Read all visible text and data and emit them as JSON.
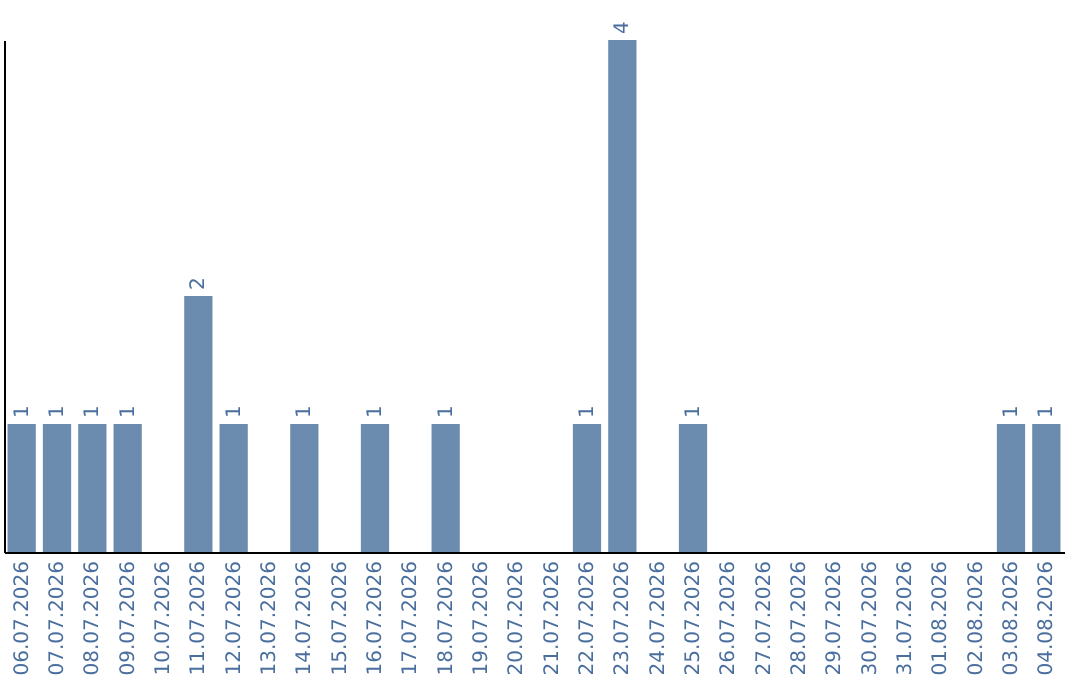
{
  "chart_data": {
    "type": "bar",
    "categories": [
      "06.07.2026",
      "07.07.2026",
      "08.07.2026",
      "09.07.2026",
      "10.07.2026",
      "11.07.2026",
      "12.07.2026",
      "13.07.2026",
      "14.07.2026",
      "15.07.2026",
      "16.07.2026",
      "17.07.2026",
      "18.07.2026",
      "19.07.2026",
      "20.07.2026",
      "21.07.2026",
      "22.07.2026",
      "23.07.2026",
      "24.07.2026",
      "25.07.2026",
      "26.07.2026",
      "27.07.2026",
      "28.07.2026",
      "29.07.2026",
      "30.07.2026",
      "31.07.2026",
      "01.08.2026",
      "02.08.2026",
      "03.08.2026",
      "04.08.2026"
    ],
    "values": [
      1,
      1,
      1,
      1,
      null,
      2,
      1,
      null,
      1,
      null,
      1,
      null,
      1,
      null,
      null,
      null,
      1,
      4,
      null,
      1,
      null,
      null,
      null,
      null,
      null,
      null,
      null,
      null,
      1,
      1
    ],
    "color": "#6b8cae",
    "ylim": [
      0,
      4
    ],
    "data_labels": true,
    "tick_labels": "x",
    "grid": false
  }
}
